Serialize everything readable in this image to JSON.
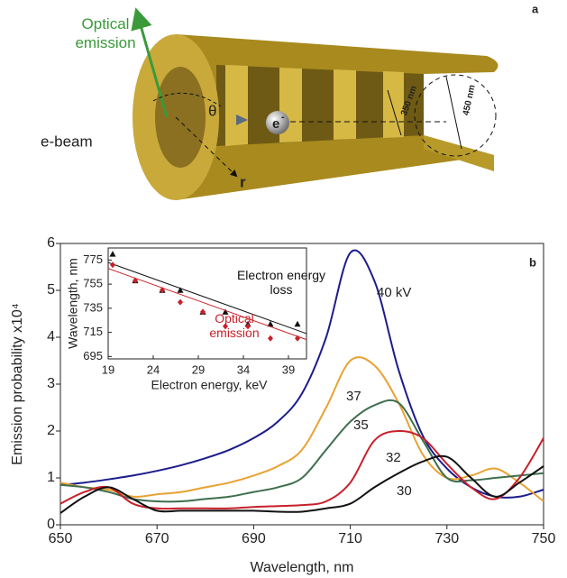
{
  "diagram": {
    "panel_label": "a",
    "optical_emission": "Optical emission",
    "e_beam": "e-beam",
    "theta": "θ",
    "electron": "e",
    "electron_charge": "-",
    "r": "r",
    "d_inner": "350 nm",
    "d_outer": "450 nm"
  },
  "chart_data": [
    {
      "type": "line",
      "panel_label": "b",
      "xlabel": "Wavelength, nm",
      "ylabel": "Emission probability x10⁴",
      "x": [
        650,
        655,
        660,
        665,
        670,
        675,
        680,
        685,
        690,
        695,
        700,
        705,
        710,
        715,
        720,
        725,
        730,
        735,
        740,
        745,
        750
      ],
      "xlim": [
        650,
        750
      ],
      "xticks": [
        650,
        670,
        690,
        710,
        730,
        750
      ],
      "ylim": [
        0,
        6
      ],
      "yticks": [
        0,
        1,
        2,
        3,
        4,
        5,
        6
      ],
      "series": [
        {
          "name": "40 kV",
          "color": "#1c1c8c",
          "values": [
            0.85,
            0.9,
            0.97,
            1.05,
            1.15,
            1.27,
            1.42,
            1.6,
            1.85,
            2.2,
            2.8,
            4.0,
            5.8,
            5.2,
            3.3,
            1.9,
            1.2,
            0.8,
            0.6,
            0.6,
            0.75
          ]
        },
        {
          "name": "37",
          "color": "#e8a232",
          "values": [
            0.9,
            0.8,
            0.75,
            0.6,
            0.65,
            0.7,
            0.8,
            0.9,
            1.05,
            1.25,
            1.6,
            2.5,
            3.5,
            3.4,
            2.6,
            1.5,
            1.0,
            1.05,
            1.2,
            0.9,
            0.5
          ]
        },
        {
          "name": "35",
          "color": "#3f6e4e",
          "values": [
            0.85,
            0.8,
            0.7,
            0.55,
            0.5,
            0.5,
            0.55,
            0.6,
            0.7,
            0.8,
            1.0,
            1.6,
            2.2,
            2.55,
            2.6,
            1.8,
            1.0,
            0.95,
            1.0,
            1.05,
            1.1
          ]
        },
        {
          "name": "32",
          "color": "#c8202a",
          "values": [
            0.45,
            0.7,
            0.8,
            0.45,
            0.35,
            0.35,
            0.35,
            0.35,
            0.38,
            0.4,
            0.42,
            0.5,
            0.9,
            1.8,
            2.0,
            1.85,
            1.3,
            0.8,
            0.55,
            1.0,
            1.85
          ]
        },
        {
          "name": "30",
          "color": "#111111",
          "values": [
            0.25,
            0.6,
            0.8,
            0.55,
            0.3,
            0.3,
            0.3,
            0.3,
            0.3,
            0.28,
            0.28,
            0.35,
            0.45,
            0.8,
            1.1,
            1.35,
            1.45,
            1.0,
            0.6,
            0.9,
            1.25
          ]
        }
      ]
    },
    {
      "type": "scatter",
      "xlabel": "Electron energy, keV",
      "ylabel": "Wavelength, nm",
      "xlim": [
        19,
        41
      ],
      "xticks": [
        19,
        24,
        29,
        34,
        39
      ],
      "ylim": [
        693,
        785
      ],
      "yticks": [
        695,
        715,
        735,
        755,
        775
      ],
      "series": [
        {
          "name": "Electron energy loss",
          "color": "#111111",
          "marker": "triangle",
          "x": [
            19.5,
            22,
            25,
            27,
            29.5,
            32,
            34.5,
            37,
            40
          ],
          "values": [
            780,
            758,
            750,
            750,
            732,
            732,
            722,
            722,
            722
          ],
          "fit": {
            "x": [
              19,
              41
            ],
            "values": [
              773,
              714
            ]
          }
        },
        {
          "name": "Optical emission",
          "color": "#c8202a",
          "marker": "diamond",
          "x": [
            19.5,
            22,
            25,
            27,
            29.5,
            32,
            34.5,
            37,
            40
          ],
          "values": [
            771,
            758,
            750,
            740,
            732,
            720,
            720,
            710,
            710
          ],
          "fit": {
            "x": [
              19,
              41
            ],
            "values": [
              768,
              709
            ]
          }
        }
      ]
    }
  ]
}
